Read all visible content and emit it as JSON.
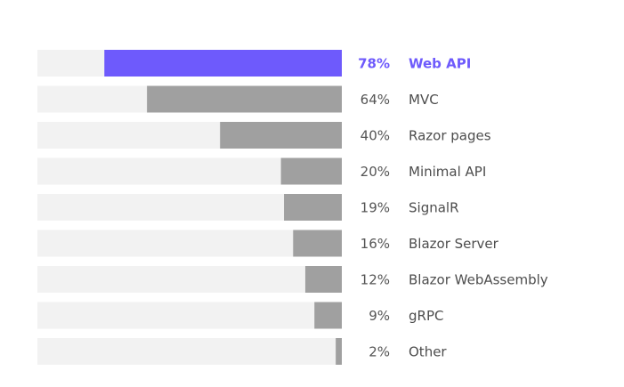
{
  "chart_data": {
    "type": "bar",
    "orientation": "horizontal",
    "categories": [
      "Web API",
      "MVC",
      "Razor pages",
      "Minimal API",
      "SignalR",
      "Blazor Server",
      "Blazor WebAssembly",
      "gRPC",
      "Other"
    ],
    "values": [
      78,
      64,
      40,
      20,
      19,
      16,
      12,
      9,
      2
    ],
    "value_labels": [
      "78%",
      "64%",
      "40%",
      "20%",
      "19%",
      "16%",
      "12%",
      "9%",
      "2%"
    ],
    "highlighted_category": "Web API",
    "xlim": [
      0,
      100
    ],
    "bar_direction": "right-to-left",
    "grid": false,
    "legend": "none",
    "colors": {
      "highlight": "#6e5afc",
      "bar": "#a0a0a0",
      "track": "#f2f2f2",
      "label": "#4d4d4d"
    }
  }
}
